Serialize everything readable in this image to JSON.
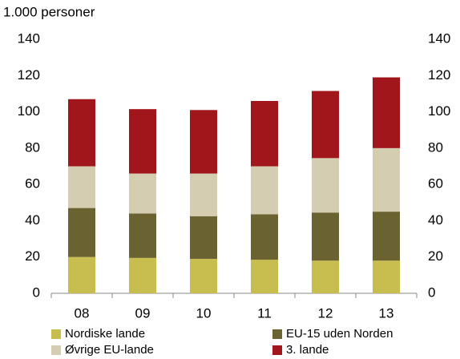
{
  "chart_data": {
    "type": "stacked_bar",
    "y_label": "1.000 personer",
    "categories": [
      "08",
      "09",
      "10",
      "11",
      "12",
      "13"
    ],
    "series": [
      {
        "name": "Nordiske lande",
        "color": "#c8bd4f",
        "values": [
          20,
          19.5,
          19,
          18.5,
          18,
          18
        ]
      },
      {
        "name": "EU-15 uden Norden",
        "color": "#6a6231",
        "values": [
          27,
          24.5,
          23.5,
          25,
          26.5,
          27
        ]
      },
      {
        "name": "Øvrige EU-lande",
        "color": "#d5cdb1",
        "values": [
          23,
          22,
          23.5,
          26.5,
          30,
          35
        ]
      },
      {
        "name": "3. lande",
        "color": "#a0161b",
        "values": [
          37,
          35.5,
          35,
          36,
          37,
          39
        ]
      }
    ],
    "ylim": [
      0,
      140
    ],
    "yticks": [
      0,
      20,
      40,
      60,
      80,
      100,
      120,
      140
    ],
    "y2lim": [
      0,
      140
    ],
    "y2ticks": [
      0,
      20,
      40,
      60,
      80,
      100,
      120,
      140
    ],
    "legend": "bottom"
  }
}
